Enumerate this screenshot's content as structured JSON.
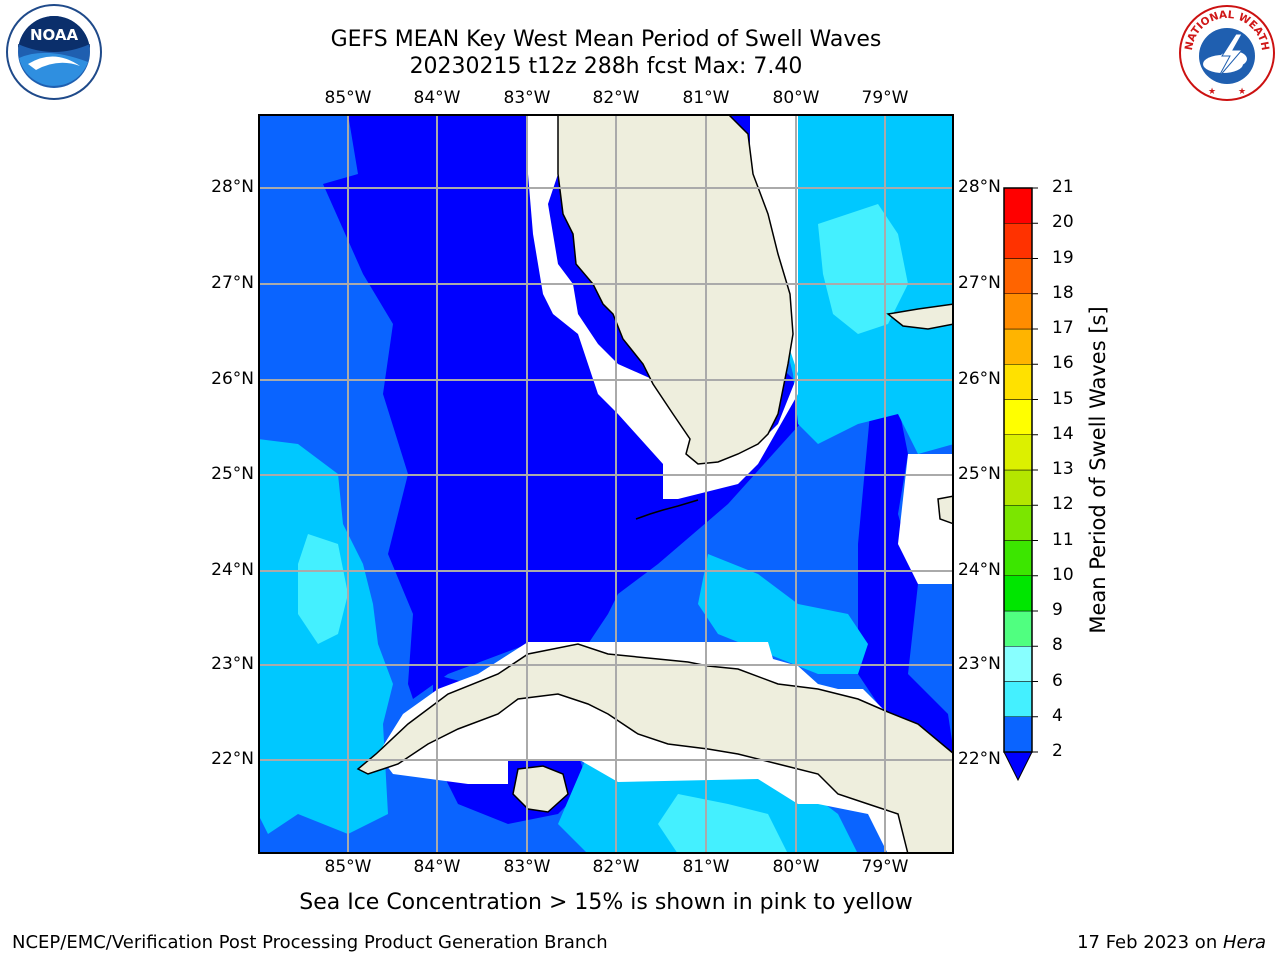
{
  "header": {
    "title_line1": "GEFS MEAN Key West Mean Period of Swell Waves",
    "title_line2": "20230215 t12z 288h fcst   Max: 7.40"
  },
  "logos": {
    "left": "noaa-logo",
    "left_text": "NOAA",
    "right": "nws-logo",
    "right_text": "NATIONAL WEATHER SERVICE"
  },
  "map": {
    "lon_labels": [
      "85°W",
      "84°W",
      "83°W",
      "82°W",
      "81°W",
      "80°W",
      "79°W"
    ],
    "lat_labels": [
      "28°N",
      "27°N",
      "26°N",
      "25°N",
      "24°N",
      "23°N",
      "22°N"
    ],
    "land_color": "#eeeedd",
    "grid_color": "#aaaaaa"
  },
  "colorbar": {
    "title": "Mean Period of Swell Waves [s]",
    "ticks": [
      "2",
      "4",
      "6",
      "8",
      "9",
      "10",
      "11",
      "12",
      "13",
      "14",
      "15",
      "16",
      "17",
      "18",
      "19",
      "20",
      "21"
    ],
    "colors": [
      "#0a64ff",
      "#00c8ff",
      "#44f0ff",
      "#88ffff",
      "#50ff80",
      "#00e600",
      "#3ce600",
      "#7be600",
      "#b4e600",
      "#dcf000",
      "#ffff00",
      "#ffe100",
      "#ffb400",
      "#ff8c00",
      "#ff6400",
      "#ff3200",
      "#ff0000"
    ],
    "under_color": "#0000ff"
  },
  "chart_data": {
    "type": "heatmap",
    "title": "GEFS MEAN Key West Mean Period of Swell Waves",
    "subtitle": "20230215 t12z 288h fcst   Max: 7.40",
    "max_value": 7.4,
    "levels": [
      2,
      4,
      6,
      8,
      9,
      10,
      11,
      12,
      13,
      14,
      15,
      16,
      17,
      18,
      19,
      20,
      21
    ],
    "units": "s",
    "x_ticks": [
      "85°W",
      "84°W",
      "83°W",
      "82°W",
      "81°W",
      "80°W",
      "79°W"
    ],
    "y_ticks": [
      "28°N",
      "27°N",
      "26°N",
      "25°N",
      "24°N",
      "23°N",
      "22°N"
    ],
    "grid": true
  },
  "footer": {
    "note": "Sea Ice Concentration > 15% is shown in pink to yellow",
    "left": "NCEP/EMC/Verification Post Processing Product Generation Branch",
    "date": "17 Feb 2023 on ",
    "host": "Hera"
  }
}
